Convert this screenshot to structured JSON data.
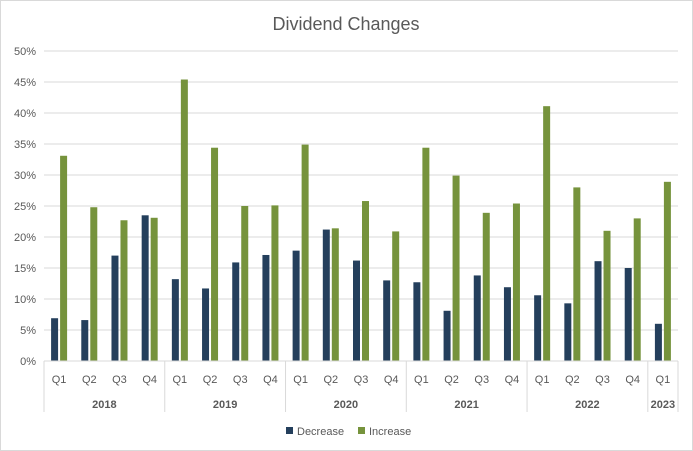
{
  "chart_data": {
    "type": "bar",
    "title": "Dividend Changes",
    "xlabel": "",
    "ylabel": "",
    "ylim": [
      0,
      50
    ],
    "yticks": [
      "0%",
      "5%",
      "10%",
      "15%",
      "20%",
      "25%",
      "30%",
      "35%",
      "40%",
      "45%",
      "50%"
    ],
    "grid": true,
    "legend_position": "bottom",
    "categories": [
      "Q1",
      "Q2",
      "Q3",
      "Q4",
      "Q1",
      "Q2",
      "Q3",
      "Q4",
      "Q1",
      "Q2",
      "Q3",
      "Q4",
      "Q1",
      "Q2",
      "Q3",
      "Q4",
      "Q1",
      "Q2",
      "Q3",
      "Q4",
      "Q1"
    ],
    "groups": [
      {
        "label": "2018",
        "count": 4
      },
      {
        "label": "2019",
        "count": 4
      },
      {
        "label": "2020",
        "count": 4
      },
      {
        "label": "2021",
        "count": 4
      },
      {
        "label": "2022",
        "count": 4
      },
      {
        "label": "2023",
        "count": 1
      }
    ],
    "series": [
      {
        "name": "Decrease",
        "color": "#243f5c",
        "values": [
          6.9,
          6.6,
          17.0,
          23.5,
          13.2,
          11.7,
          15.9,
          17.1,
          17.8,
          21.2,
          16.2,
          13.0,
          12.7,
          8.1,
          13.8,
          11.9,
          10.6,
          9.3,
          16.1,
          15.0,
          6.0
        ]
      },
      {
        "name": "Increase",
        "color": "#76933c",
        "values": [
          33.1,
          24.8,
          22.7,
          23.1,
          45.4,
          34.4,
          25.0,
          25.1,
          34.9,
          21.4,
          25.8,
          20.9,
          34.4,
          29.9,
          23.9,
          25.4,
          41.1,
          28.0,
          21.0,
          23.0,
          28.9
        ]
      }
    ]
  }
}
